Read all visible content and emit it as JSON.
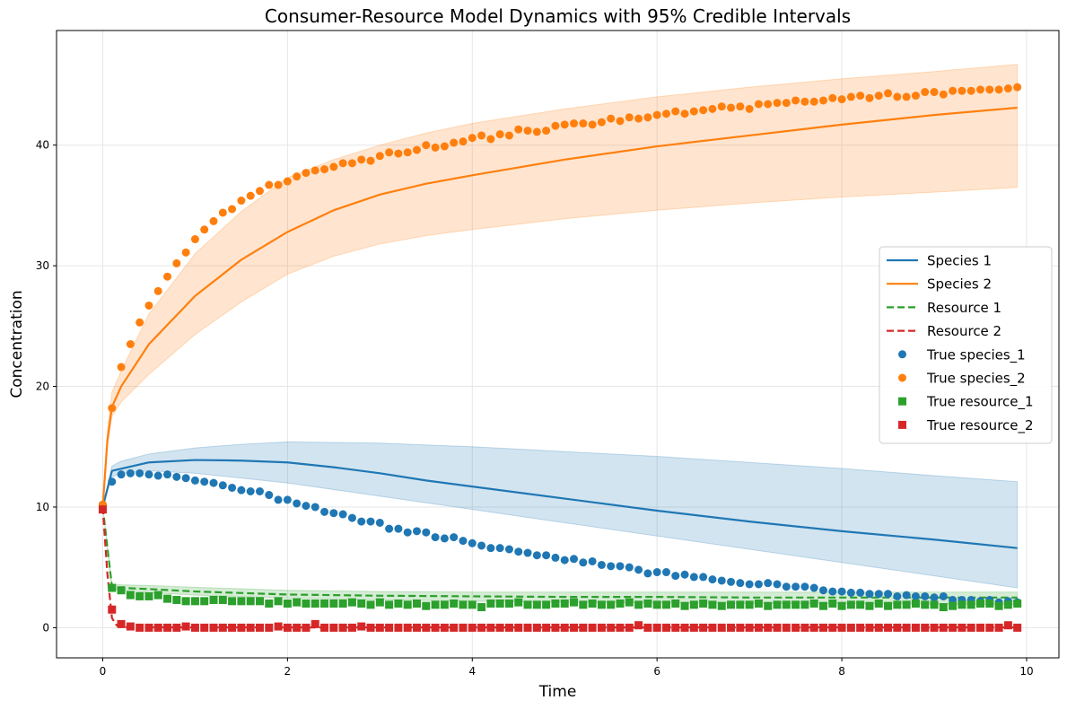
{
  "chart_data": {
    "type": "line",
    "title": "Consumer-Resource Model Dynamics with 95% Credible Intervals",
    "xlabel": "Time",
    "ylabel": "Concentration",
    "xlim": [
      -0.5,
      10.35
    ],
    "ylim": [
      -2.5,
      49.5
    ],
    "xticks": [
      0,
      2,
      4,
      6,
      8,
      10
    ],
    "yticks": [
      0,
      10,
      20,
      30,
      40
    ],
    "grid": true,
    "legend_position": "center-right",
    "fit_lines": [
      {
        "name": "Species 1",
        "color": "#1f77b4",
        "dash": "solid",
        "x": [
          0,
          0.1,
          0.5,
          1.0,
          1.5,
          2,
          2.5,
          3,
          3.5,
          4,
          5,
          6,
          7,
          8,
          9,
          9.9
        ],
        "y": [
          10,
          13.0,
          13.7,
          13.9,
          13.85,
          13.7,
          13.3,
          12.8,
          12.2,
          11.7,
          10.7,
          9.7,
          8.8,
          8.0,
          7.3,
          6.6
        ]
      },
      {
        "name": "Species 2",
        "color": "#ff7f0e",
        "dash": "solid",
        "x": [
          0,
          0.05,
          0.1,
          0.2,
          0.5,
          1,
          1.5,
          2,
          2.5,
          3,
          3.5,
          4,
          5,
          6,
          7,
          8,
          9,
          9.9
        ],
        "y": [
          10,
          15.5,
          18.3,
          20.0,
          23.5,
          27.5,
          30.5,
          32.8,
          34.6,
          35.9,
          36.8,
          37.5,
          38.8,
          39.9,
          40.8,
          41.7,
          42.5,
          43.1
        ]
      },
      {
        "name": "Resource 1",
        "color": "#2ca02c",
        "dash": "dashed",
        "x": [
          0,
          0.1,
          0.2,
          0.5,
          1,
          2,
          3,
          4,
          5,
          6,
          7,
          8,
          9,
          9.9
        ],
        "y": [
          10,
          3.4,
          3.3,
          3.2,
          3.0,
          2.75,
          2.65,
          2.6,
          2.55,
          2.55,
          2.5,
          2.5,
          2.5,
          2.5
        ]
      },
      {
        "name": "Resource 2",
        "color": "#d62728",
        "dash": "dashed",
        "x": [
          0,
          0.05,
          0.1,
          0.15,
          0.2,
          0.5,
          1,
          2,
          3,
          5,
          7,
          9.9
        ],
        "y": [
          10,
          4.5,
          0.8,
          0.2,
          0.05,
          0.03,
          0.02,
          0.02,
          0.02,
          0.02,
          0.02,
          0.02
        ]
      }
    ],
    "credible_intervals": [
      {
        "name": "Species 1",
        "color": "#1f77b4",
        "x": [
          0,
          0.1,
          0.2,
          0.5,
          1,
          1.5,
          2,
          3,
          4,
          5,
          6,
          7,
          8,
          9,
          9.9
        ],
        "lower": [
          10,
          12.5,
          12.8,
          13.0,
          12.8,
          12.4,
          12.0,
          10.9,
          9.8,
          8.7,
          7.6,
          6.5,
          5.4,
          4.3,
          3.3
        ],
        "upper": [
          10,
          13.4,
          13.8,
          14.4,
          14.9,
          15.2,
          15.4,
          15.3,
          15.0,
          14.6,
          14.2,
          13.7,
          13.2,
          12.6,
          12.1
        ]
      },
      {
        "name": "Species 2",
        "color": "#ff7f0e",
        "x": [
          0,
          0.05,
          0.1,
          0.2,
          0.5,
          1,
          1.5,
          2,
          2.5,
          3,
          3.5,
          4,
          5,
          6,
          7,
          8,
          9,
          9.9
        ],
        "lower": [
          10,
          15.0,
          17.5,
          18.7,
          21.0,
          24.3,
          27.0,
          29.3,
          30.8,
          31.8,
          32.5,
          33.0,
          33.9,
          34.6,
          35.2,
          35.7,
          36.1,
          36.5
        ],
        "upper": [
          10,
          16.3,
          19.5,
          21.3,
          26.0,
          31.0,
          34.5,
          37.3,
          38.8,
          40.0,
          41.0,
          41.8,
          43.0,
          44.0,
          44.8,
          45.5,
          46.1,
          46.7
        ]
      },
      {
        "name": "Resource 1",
        "color": "#2ca02c",
        "x": [
          0,
          0.1,
          0.2,
          0.5,
          1,
          2,
          3,
          4,
          5,
          6,
          7,
          8,
          9,
          9.9
        ],
        "lower": [
          10,
          3.2,
          3.1,
          2.9,
          2.7,
          2.45,
          2.3,
          2.2,
          2.1,
          2.05,
          2.0,
          2.0,
          1.95,
          1.9
        ],
        "upper": [
          10,
          3.6,
          3.55,
          3.5,
          3.35,
          3.1,
          3.0,
          2.95,
          2.95,
          2.95,
          2.95,
          2.95,
          2.95,
          2.95
        ]
      }
    ],
    "true_points": [
      {
        "name": "True species_1",
        "color": "#1f77b4",
        "marker": "circle",
        "x": [
          0,
          0.1,
          0.2,
          0.3,
          0.4,
          0.5,
          0.6,
          0.7,
          0.8,
          0.9,
          1.0,
          1.1,
          1.2,
          1.3,
          1.4,
          1.5,
          1.6,
          1.7,
          1.8,
          1.9,
          2.0,
          2.1,
          2.2,
          2.3,
          2.4,
          2.5,
          2.6,
          2.7,
          2.8,
          2.9,
          3.0,
          3.1,
          3.2,
          3.3,
          3.4,
          3.5,
          3.6,
          3.7,
          3.8,
          3.9,
          4.0,
          4.1,
          4.2,
          4.3,
          4.4,
          4.5,
          4.6,
          4.7,
          4.8,
          4.9,
          5.0,
          5.1,
          5.2,
          5.3,
          5.4,
          5.5,
          5.6,
          5.7,
          5.8,
          5.9,
          6.0,
          6.1,
          6.2,
          6.3,
          6.4,
          6.5,
          6.6,
          6.7,
          6.8,
          6.9,
          7.0,
          7.1,
          7.2,
          7.3,
          7.4,
          7.5,
          7.6,
          7.7,
          7.8,
          7.9,
          8.0,
          8.1,
          8.2,
          8.3,
          8.4,
          8.5,
          8.6,
          8.7,
          8.8,
          8.9,
          9.0,
          9.1,
          9.2,
          9.3,
          9.4,
          9.5,
          9.6,
          9.7,
          9.8,
          9.9
        ],
        "y": [
          10.2,
          12.1,
          12.7,
          12.8,
          12.8,
          12.7,
          12.6,
          12.7,
          12.5,
          12.4,
          12.2,
          12.1,
          12.0,
          11.8,
          11.6,
          11.4,
          11.3,
          11.3,
          11.0,
          10.6,
          10.6,
          10.3,
          10.1,
          10.0,
          9.6,
          9.5,
          9.4,
          9.1,
          8.8,
          8.8,
          8.7,
          8.2,
          8.2,
          7.9,
          8.0,
          7.9,
          7.5,
          7.4,
          7.5,
          7.2,
          7.0,
          6.8,
          6.6,
          6.6,
          6.5,
          6.3,
          6.2,
          6.0,
          6.0,
          5.8,
          5.6,
          5.7,
          5.4,
          5.5,
          5.2,
          5.1,
          5.1,
          5.0,
          4.8,
          4.5,
          4.6,
          4.6,
          4.3,
          4.4,
          4.2,
          4.2,
          4.0,
          3.9,
          3.8,
          3.7,
          3.6,
          3.6,
          3.7,
          3.6,
          3.4,
          3.4,
          3.4,
          3.3,
          3.1,
          3.0,
          3.0,
          2.9,
          2.9,
          2.8,
          2.8,
          2.8,
          2.6,
          2.7,
          2.6,
          2.6,
          2.5,
          2.6,
          2.3,
          2.3,
          2.3,
          2.2,
          2.3,
          2.1,
          2.2,
          2.1
        ]
      },
      {
        "name": "True species_2",
        "color": "#ff7f0e",
        "marker": "circle",
        "x": [
          0,
          0.1,
          0.2,
          0.3,
          0.4,
          0.5,
          0.6,
          0.7,
          0.8,
          0.9,
          1.0,
          1.1,
          1.2,
          1.3,
          1.4,
          1.5,
          1.6,
          1.7,
          1.8,
          1.9,
          2.0,
          2.1,
          2.2,
          2.3,
          2.4,
          2.5,
          2.6,
          2.7,
          2.8,
          2.9,
          3.0,
          3.1,
          3.2,
          3.3,
          3.4,
          3.5,
          3.6,
          3.7,
          3.8,
          3.9,
          4.0,
          4.1,
          4.2,
          4.3,
          4.4,
          4.5,
          4.6,
          4.7,
          4.8,
          4.9,
          5.0,
          5.1,
          5.2,
          5.3,
          5.4,
          5.5,
          5.6,
          5.7,
          5.8,
          5.9,
          6.0,
          6.1,
          6.2,
          6.3,
          6.4,
          6.5,
          6.6,
          6.7,
          6.8,
          6.9,
          7.0,
          7.1,
          7.2,
          7.3,
          7.4,
          7.5,
          7.6,
          7.7,
          7.8,
          7.9,
          8.0,
          8.1,
          8.2,
          8.3,
          8.4,
          8.5,
          8.6,
          8.7,
          8.8,
          8.9,
          9.0,
          9.1,
          9.2,
          9.3,
          9.4,
          9.5,
          9.6,
          9.7,
          9.8,
          9.9
        ],
        "y": [
          10.2,
          18.2,
          21.6,
          23.5,
          25.3,
          26.7,
          27.9,
          29.1,
          30.2,
          31.1,
          32.2,
          33.0,
          33.7,
          34.4,
          34.7,
          35.4,
          35.8,
          36.2,
          36.7,
          36.7,
          37.0,
          37.4,
          37.7,
          37.9,
          38.0,
          38.2,
          38.5,
          38.5,
          38.8,
          38.7,
          39.1,
          39.4,
          39.3,
          39.4,
          39.6,
          40.0,
          39.8,
          39.9,
          40.2,
          40.3,
          40.6,
          40.8,
          40.5,
          40.9,
          40.8,
          41.3,
          41.2,
          41.1,
          41.2,
          41.6,
          41.7,
          41.8,
          41.8,
          41.7,
          41.9,
          42.2,
          42.0,
          42.3,
          42.2,
          42.3,
          42.5,
          42.6,
          42.8,
          42.6,
          42.8,
          42.9,
          43.0,
          43.2,
          43.1,
          43.2,
          43.0,
          43.4,
          43.4,
          43.5,
          43.5,
          43.7,
          43.6,
          43.6,
          43.7,
          43.9,
          43.8,
          44.0,
          44.1,
          43.9,
          44.1,
          44.3,
          44.0,
          44.0,
          44.1,
          44.4,
          44.4,
          44.2,
          44.5,
          44.5,
          44.5,
          44.6,
          44.6,
          44.6,
          44.7,
          44.8
        ]
      },
      {
        "name": "True resource_1",
        "color": "#2ca02c",
        "marker": "square",
        "x": [
          0.1,
          0.2,
          0.3,
          0.4,
          0.5,
          0.6,
          0.7,
          0.8,
          0.9,
          1.0,
          1.1,
          1.2,
          1.3,
          1.4,
          1.5,
          1.6,
          1.7,
          1.8,
          1.9,
          2.0,
          2.1,
          2.2,
          2.3,
          2.4,
          2.5,
          2.6,
          2.7,
          2.8,
          2.9,
          3.0,
          3.1,
          3.2,
          3.3,
          3.4,
          3.5,
          3.6,
          3.7,
          3.8,
          3.9,
          4.0,
          4.1,
          4.2,
          4.3,
          4.4,
          4.5,
          4.6,
          4.7,
          4.8,
          4.9,
          5.0,
          5.1,
          5.2,
          5.3,
          5.4,
          5.5,
          5.6,
          5.7,
          5.8,
          5.9,
          6.0,
          6.1,
          6.2,
          6.3,
          6.4,
          6.5,
          6.6,
          6.7,
          6.8,
          6.9,
          7.0,
          7.1,
          7.2,
          7.3,
          7.4,
          7.5,
          7.6,
          7.7,
          7.8,
          7.9,
          8.0,
          8.1,
          8.2,
          8.3,
          8.4,
          8.5,
          8.6,
          8.7,
          8.8,
          8.9,
          9.0,
          9.1,
          9.2,
          9.3,
          9.4,
          9.5,
          9.6,
          9.7,
          9.8,
          9.9
        ],
        "y": [
          3.3,
          3.1,
          2.7,
          2.6,
          2.6,
          2.7,
          2.4,
          2.3,
          2.2,
          2.2,
          2.2,
          2.3,
          2.3,
          2.2,
          2.2,
          2.2,
          2.2,
          2.0,
          2.2,
          2.0,
          2.1,
          2.0,
          2.0,
          2.0,
          2.0,
          2.0,
          2.1,
          2.0,
          1.9,
          2.1,
          1.9,
          2.0,
          1.9,
          2.0,
          1.8,
          1.9,
          1.9,
          2.0,
          1.9,
          1.9,
          1.7,
          2.0,
          2.0,
          2.0,
          2.1,
          1.9,
          1.9,
          1.9,
          2.0,
          2.0,
          2.1,
          1.9,
          2.0,
          1.9,
          1.9,
          2.0,
          2.1,
          1.9,
          2.0,
          1.9,
          1.9,
          2.0,
          1.8,
          1.9,
          2.0,
          1.9,
          1.8,
          1.9,
          1.9,
          1.9,
          2.0,
          1.8,
          1.9,
          1.9,
          1.9,
          1.9,
          2.0,
          1.8,
          2.0,
          1.8,
          1.9,
          1.9,
          1.8,
          2.0,
          1.8,
          1.9,
          1.9,
          2.0,
          1.9,
          1.9,
          1.7,
          1.8,
          1.9,
          1.9,
          2.0,
          2.0,
          1.8,
          1.9,
          2.0
        ]
      },
      {
        "name": "True resource_2",
        "color": "#d62728",
        "marker": "square",
        "x": [
          0,
          0.1,
          0.2,
          0.3,
          0.4,
          0.5,
          0.6,
          0.7,
          0.8,
          0.9,
          1.0,
          1.1,
          1.2,
          1.3,
          1.4,
          1.5,
          1.6,
          1.7,
          1.8,
          1.9,
          2.0,
          2.1,
          2.2,
          2.3,
          2.4,
          2.5,
          2.6,
          2.7,
          2.8,
          2.9,
          3.0,
          3.1,
          3.2,
          3.3,
          3.4,
          3.5,
          3.6,
          3.7,
          3.8,
          3.9,
          4.0,
          4.1,
          4.2,
          4.3,
          4.4,
          4.5,
          4.6,
          4.7,
          4.8,
          4.9,
          5.0,
          5.1,
          5.2,
          5.3,
          5.4,
          5.5,
          5.6,
          5.7,
          5.8,
          5.9,
          6.0,
          6.1,
          6.2,
          6.3,
          6.4,
          6.5,
          6.6,
          6.7,
          6.8,
          6.9,
          7.0,
          7.1,
          7.2,
          7.3,
          7.4,
          7.5,
          7.6,
          7.7,
          7.8,
          7.9,
          8.0,
          8.1,
          8.2,
          8.3,
          8.4,
          8.5,
          8.6,
          8.7,
          8.8,
          8.9,
          9.0,
          9.1,
          9.2,
          9.3,
          9.4,
          9.5,
          9.6,
          9.7,
          9.8,
          9.9
        ],
        "y": [
          9.8,
          1.5,
          0.3,
          0.1,
          0.0,
          0.0,
          0.0,
          0.0,
          0.0,
          0.1,
          0.0,
          0.0,
          0.0,
          0.0,
          0.0,
          0.0,
          0.0,
          0.0,
          0.0,
          0.1,
          0.0,
          0.0,
          0.0,
          0.3,
          0.0,
          0.0,
          0.0,
          0.0,
          0.1,
          0.0,
          0.0,
          0.0,
          0.0,
          0.0,
          0.0,
          0.0,
          0.0,
          0.0,
          0.0,
          0.0,
          0.0,
          0.0,
          0.0,
          0.0,
          0.0,
          0.0,
          0.0,
          0.0,
          0.0,
          0.0,
          0.0,
          0.0,
          0.0,
          0.0,
          0.0,
          0.0,
          0.0,
          0.0,
          0.2,
          0.0,
          0.0,
          0.0,
          0.0,
          0.0,
          0.0,
          0.0,
          0.0,
          0.0,
          0.0,
          0.0,
          0.0,
          0.0,
          0.0,
          0.0,
          0.0,
          0.0,
          0.0,
          0.0,
          0.0,
          0.0,
          0.0,
          0.0,
          0.0,
          0.0,
          0.0,
          0.0,
          0.0,
          0.0,
          0.0,
          0.0,
          0.0,
          0.0,
          0.0,
          0.0,
          0.0,
          0.0,
          0.0,
          0.0,
          0.2,
          0.0
        ]
      }
    ]
  }
}
